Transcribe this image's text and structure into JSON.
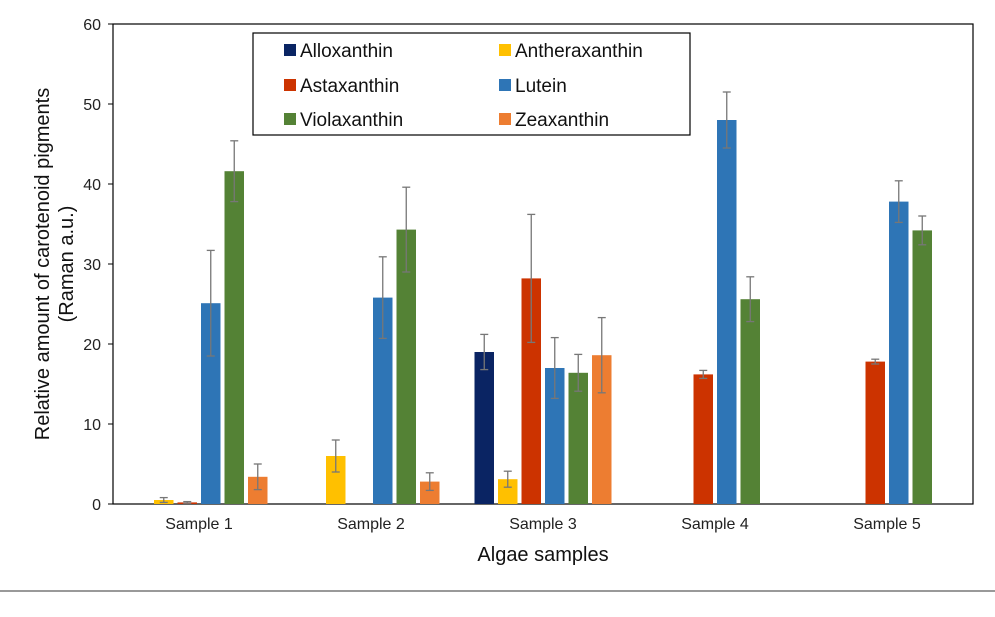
{
  "chart_data": {
    "type": "bar",
    "title": "",
    "xlabel": "Algae samples",
    "ylabel": "Relative amount of carotenoid pigments",
    "ylabel_line2": "(Raman a.u.)",
    "ylim": [
      0,
      60
    ],
    "yticks": [
      0,
      10,
      20,
      30,
      40,
      50,
      60
    ],
    "grid": false,
    "legend_position": "top-left",
    "categories": [
      "Sample 1",
      "Sample 2",
      "Sample 3",
      "Sample 4",
      "Sample 5"
    ],
    "series": [
      {
        "name": "Alloxanthin",
        "color": "#0a2463",
        "values": [
          0,
          0,
          19.0,
          0,
          0
        ],
        "errors": [
          0,
          0,
          2.2,
          0,
          0
        ]
      },
      {
        "name": "Antheraxanthin",
        "color": "#ffc000",
        "values": [
          0.5,
          6.0,
          3.1,
          0,
          0
        ],
        "errors": [
          0.3,
          2.0,
          1.0,
          0,
          0
        ]
      },
      {
        "name": "Astaxanthin",
        "color": "#cc3300",
        "values": [
          0.2,
          0,
          28.2,
          16.2,
          17.8
        ],
        "errors": [
          0.1,
          0,
          8.0,
          0.5,
          0.3
        ]
      },
      {
        "name": "Lutein",
        "color": "#2e75b6",
        "values": [
          25.1,
          25.8,
          17.0,
          48.0,
          37.8
        ],
        "errors": [
          6.6,
          5.1,
          3.8,
          3.5,
          2.6
        ]
      },
      {
        "name": "Violaxanthin",
        "color": "#548235",
        "values": [
          41.6,
          34.3,
          16.4,
          25.6,
          34.2
        ],
        "errors": [
          3.8,
          5.3,
          2.3,
          2.8,
          1.8
        ]
      },
      {
        "name": "Zeaxanthin",
        "color": "#ed7d31",
        "values": [
          3.4,
          2.8,
          18.6,
          0,
          0
        ],
        "errors": [
          1.6,
          1.1,
          4.7,
          0,
          0
        ]
      }
    ]
  }
}
